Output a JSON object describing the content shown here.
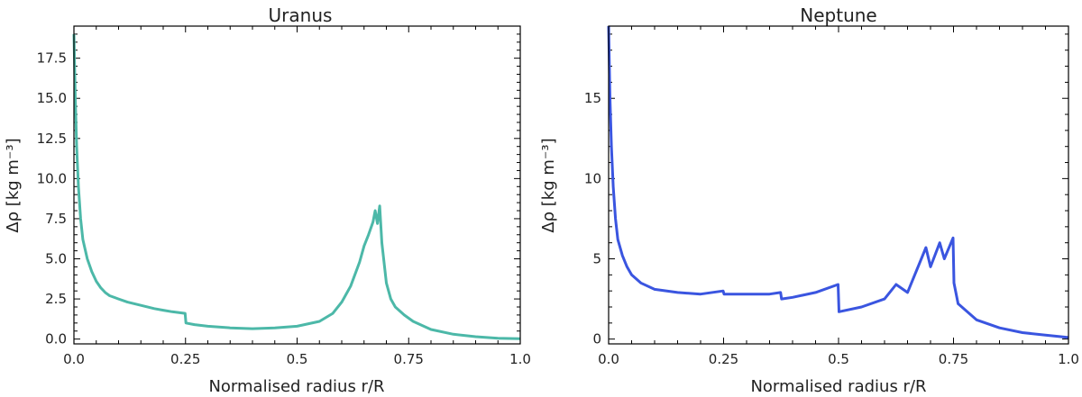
{
  "chart_data": [
    {
      "type": "line",
      "title": "Uranus",
      "xlabel": "Normalised radius r/R",
      "ylabel": "Δρ [kg m⁻³]",
      "xlim": [
        0,
        1
      ],
      "ylim": [
        -0.3,
        19.5
      ],
      "xticks": [
        0.0,
        0.25,
        0.5,
        0.75,
        1.0
      ],
      "xtick_labels": [
        "0.0",
        "0.25",
        "0.5",
        "0.75",
        "1.0"
      ],
      "yticks": [
        0.0,
        2.5,
        5.0,
        7.5,
        10.0,
        12.5,
        15.0,
        17.5
      ],
      "ytick_labels": [
        "0.0",
        "2.5",
        "5.0",
        "7.5",
        "10.0",
        "12.5",
        "15.0",
        "17.5"
      ],
      "color": "#4cb8a8",
      "series": [
        {
          "name": "Uranus",
          "x": [
            0.0,
            0.003,
            0.006,
            0.01,
            0.015,
            0.02,
            0.03,
            0.04,
            0.05,
            0.06,
            0.07,
            0.08,
            0.1,
            0.12,
            0.15,
            0.18,
            0.2,
            0.22,
            0.249,
            0.251,
            0.27,
            0.3,
            0.35,
            0.4,
            0.45,
            0.5,
            0.55,
            0.58,
            0.6,
            0.62,
            0.64,
            0.65,
            0.66,
            0.67,
            0.675,
            0.68,
            0.685,
            0.69,
            0.7,
            0.71,
            0.72,
            0.74,
            0.76,
            0.8,
            0.85,
            0.9,
            0.95,
            1.0
          ],
          "y": [
            19.0,
            15.0,
            12.0,
            9.5,
            7.5,
            6.2,
            5.0,
            4.2,
            3.6,
            3.2,
            2.9,
            2.7,
            2.5,
            2.3,
            2.1,
            1.9,
            1.8,
            1.7,
            1.6,
            1.0,
            0.9,
            0.8,
            0.7,
            0.65,
            0.7,
            0.8,
            1.1,
            1.6,
            2.3,
            3.3,
            4.8,
            5.8,
            6.5,
            7.3,
            8.0,
            7.2,
            8.3,
            6.0,
            3.5,
            2.5,
            2.0,
            1.5,
            1.1,
            0.6,
            0.3,
            0.15,
            0.05,
            0.02
          ]
        }
      ]
    },
    {
      "type": "line",
      "title": "Neptune",
      "xlabel": "Normalised radius r/R",
      "ylabel": "Δρ [kg m⁻³]",
      "xlim": [
        0,
        1
      ],
      "ylim": [
        -0.3,
        19.5
      ],
      "xticks": [
        0.0,
        0.25,
        0.5,
        0.75,
        1.0
      ],
      "xtick_labels": [
        "0.0",
        "0.25",
        "0.5",
        "0.75",
        "1.0"
      ],
      "yticks": [
        0,
        5,
        10,
        15
      ],
      "ytick_labels": [
        "0",
        "5",
        "10",
        "15"
      ],
      "color": "#3a55e0",
      "series": [
        {
          "name": "Neptune",
          "x": [
            0.0,
            0.003,
            0.006,
            0.01,
            0.015,
            0.02,
            0.03,
            0.04,
            0.05,
            0.07,
            0.1,
            0.15,
            0.2,
            0.249,
            0.251,
            0.3,
            0.35,
            0.374,
            0.376,
            0.4,
            0.45,
            0.499,
            0.501,
            0.55,
            0.6,
            0.625,
            0.65,
            0.67,
            0.69,
            0.7,
            0.72,
            0.73,
            0.749,
            0.751,
            0.76,
            0.8,
            0.85,
            0.9,
            0.95,
            1.0
          ],
          "y": [
            19.5,
            15.0,
            12.0,
            9.5,
            7.5,
            6.2,
            5.2,
            4.5,
            4.0,
            3.5,
            3.1,
            2.9,
            2.8,
            3.0,
            2.8,
            2.8,
            2.8,
            2.9,
            2.5,
            2.6,
            2.9,
            3.4,
            1.7,
            2.0,
            2.5,
            3.4,
            2.9,
            4.3,
            5.7,
            4.5,
            6.0,
            5.0,
            6.3,
            3.5,
            2.2,
            1.2,
            0.7,
            0.4,
            0.25,
            0.1
          ]
        }
      ]
    }
  ]
}
